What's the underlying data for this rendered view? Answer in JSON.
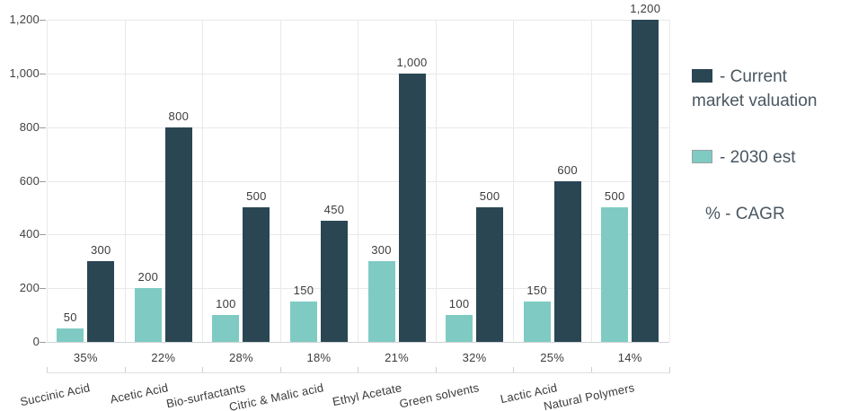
{
  "legend": {
    "items": [
      {
        "label": "- Current market valuation",
        "swatch_color": "#2a4653",
        "swatch_border": false
      },
      {
        "label": "- 2030 est",
        "swatch_color": "#7fcbc3",
        "swatch_border": true
      },
      {
        "label": "% - CAGR",
        "swatch_color": null,
        "swatch_border": false
      }
    ]
  },
  "chart_data": {
    "type": "bar",
    "title": "",
    "xlabel": "",
    "ylabel": "",
    "categories": [
      "Succinic Acid",
      "Acetic Acid",
      "Bio-surfactants",
      "Citric & Malic acid",
      "Ethyl Acetate",
      "Green solvents",
      "Lactic Acid",
      "Natural Polymers"
    ],
    "series": [
      {
        "name": "2030 est",
        "color": "#7fcbc3",
        "values": [
          50,
          200,
          100,
          150,
          300,
          100,
          150,
          500
        ]
      },
      {
        "name": "Current market valuation",
        "color": "#2a4653",
        "values": [
          300,
          800,
          500,
          450,
          1000,
          500,
          600,
          1200
        ]
      }
    ],
    "cagr_by_category": [
      "35%",
      "22%",
      "28%",
      "18%",
      "21%",
      "32%",
      "25%",
      "14%"
    ],
    "y_ticks": [
      0,
      200,
      400,
      600,
      800,
      1000,
      1200
    ],
    "ylim": [
      0,
      1200
    ],
    "grid": true,
    "legend_position": "right",
    "value_labels": true
  }
}
